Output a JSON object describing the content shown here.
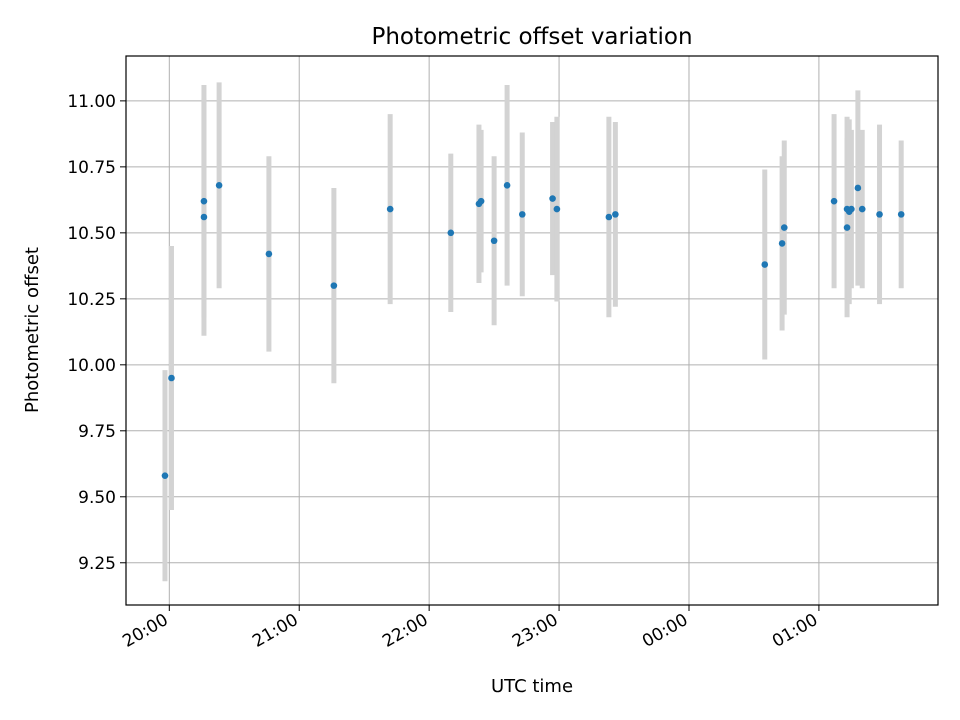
{
  "chart_data": {
    "type": "scatter",
    "title": "Photometric offset variation",
    "xlabel": "UTC time",
    "ylabel": "Photometric offset",
    "x_tick_labels": [
      "20:00",
      "21:00",
      "22:00",
      "23:00",
      "00:00",
      "01:00"
    ],
    "y_ticks": [
      9.25,
      9.5,
      9.75,
      10.0,
      10.25,
      10.5,
      10.75,
      11.0
    ],
    "y_tick_labels": [
      "9.25",
      "9.50",
      "9.75",
      "10.00",
      "10.25",
      "10.50",
      "10.75",
      "11.00"
    ],
    "xlim": [
      "19:40",
      "01:55"
    ],
    "ylim": [
      9.09,
      11.17
    ],
    "grid": true,
    "colors": {
      "points": "#1f77b4",
      "error_bars": "#d3d3d3",
      "grid": "#b0b0b0"
    },
    "points": [
      {
        "x": "19:58",
        "y": 9.58,
        "err": 0.4
      },
      {
        "x": "20:01",
        "y": 9.95,
        "err": 0.5
      },
      {
        "x": "20:16",
        "y": 10.62,
        "err": 0.44
      },
      {
        "x": "20:16",
        "y": 10.56,
        "err": 0.45
      },
      {
        "x": "20:23",
        "y": 10.68,
        "err": 0.39
      },
      {
        "x": "20:46",
        "y": 10.42,
        "err": 0.37
      },
      {
        "x": "21:16",
        "y": 10.3,
        "err": 0.37
      },
      {
        "x": "21:42",
        "y": 10.59,
        "err": 0.36
      },
      {
        "x": "22:10",
        "y": 10.5,
        "err": 0.3
      },
      {
        "x": "22:23",
        "y": 10.61,
        "err": 0.3
      },
      {
        "x": "22:24",
        "y": 10.62,
        "err": 0.27
      },
      {
        "x": "22:30",
        "y": 10.47,
        "err": 0.32
      },
      {
        "x": "22:36",
        "y": 10.68,
        "err": 0.38
      },
      {
        "x": "22:43",
        "y": 10.57,
        "err": 0.31
      },
      {
        "x": "22:57",
        "y": 10.63,
        "err": 0.29
      },
      {
        "x": "22:59",
        "y": 10.59,
        "err": 0.35
      },
      {
        "x": "23:23",
        "y": 10.56,
        "err": 0.38
      },
      {
        "x": "23:26",
        "y": 10.57,
        "err": 0.35
      },
      {
        "x": "00:35",
        "y": 10.38,
        "err": 0.36
      },
      {
        "x": "00:43",
        "y": 10.46,
        "err": 0.33
      },
      {
        "x": "00:44",
        "y": 10.52,
        "err": 0.33
      },
      {
        "x": "01:07",
        "y": 10.62,
        "err": 0.33
      },
      {
        "x": "01:13",
        "y": 10.59,
        "err": 0.35
      },
      {
        "x": "01:13",
        "y": 10.52,
        "err": 0.34
      },
      {
        "x": "01:14",
        "y": 10.58,
        "err": 0.35
      },
      {
        "x": "01:15",
        "y": 10.59,
        "err": 0.3
      },
      {
        "x": "01:18",
        "y": 10.67,
        "err": 0.37
      },
      {
        "x": "01:20",
        "y": 10.59,
        "err": 0.3
      },
      {
        "x": "01:28",
        "y": 10.57,
        "err": 0.34
      },
      {
        "x": "01:38",
        "y": 10.57,
        "err": 0.28
      }
    ]
  }
}
